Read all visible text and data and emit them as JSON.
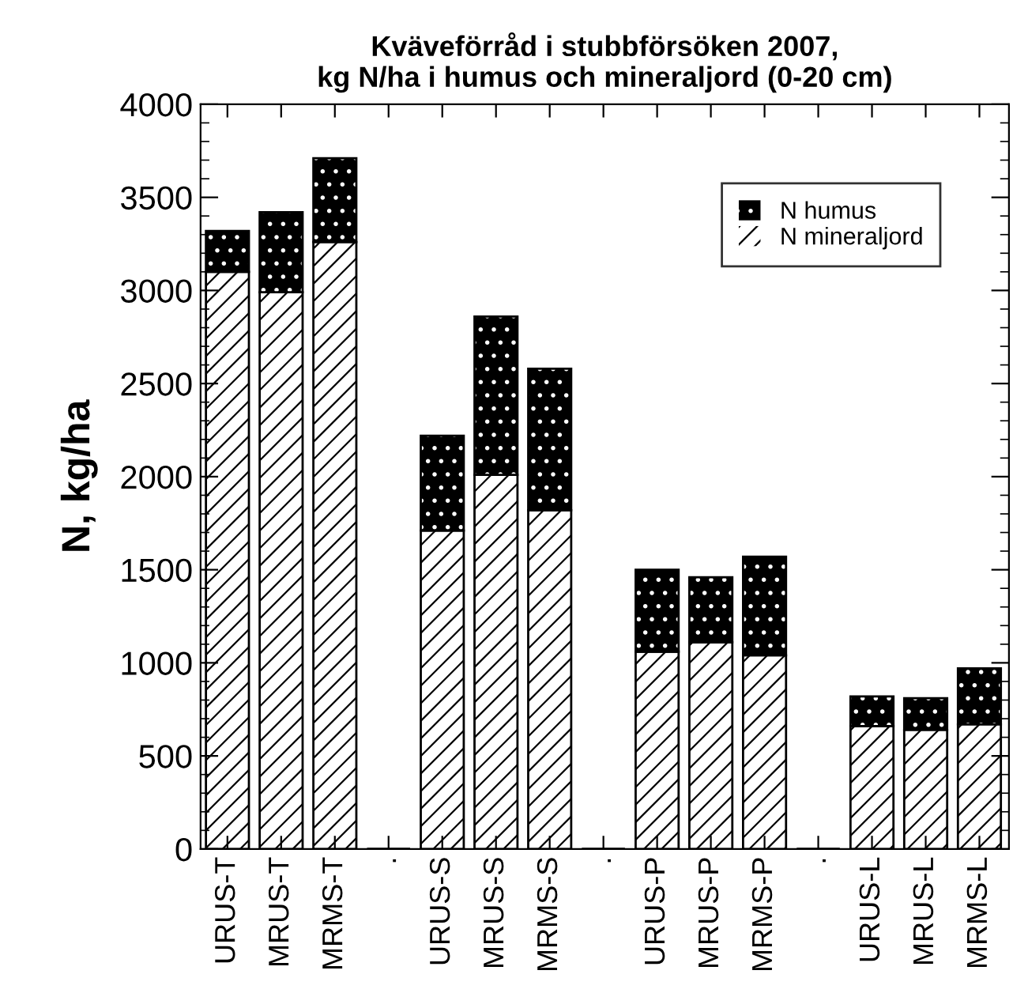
{
  "chart_data": {
    "type": "bar",
    "stacked": true,
    "title": "Kväveförråd i stubbförsöken 2007,\nkg N/ha i humus och mineraljord (0-20 cm)",
    "ylabel": "N, kg/ha",
    "categories": [
      "URUS-T",
      "MRUS-T",
      "MRMS-T",
      ".",
      "URUS-S",
      "MRUS-S",
      "MRMS-S",
      ".",
      "URUS-P",
      "MRUS-P",
      "MRMS-P",
      ".",
      "URUS-L",
      "MRUS-L",
      "MRMS-L"
    ],
    "series": [
      {
        "name": "N mineraljord",
        "color": "#ffffff",
        "values": [
          3100,
          2990,
          3260,
          null,
          1710,
          2010,
          1820,
          null,
          1060,
          1110,
          1040,
          null,
          660,
          640,
          670
        ]
      },
      {
        "name": "N humus",
        "color": "#000000",
        "values": [
          220,
          430,
          450,
          null,
          510,
          850,
          760,
          null,
          440,
          350,
          530,
          null,
          160,
          170,
          300
        ]
      }
    ],
    "ylim": [
      0,
      4000
    ],
    "yticks": [
      0,
      500,
      1000,
      1500,
      2000,
      2500,
      3000,
      3500,
      4000
    ],
    "grid": false,
    "legend": "top right"
  }
}
